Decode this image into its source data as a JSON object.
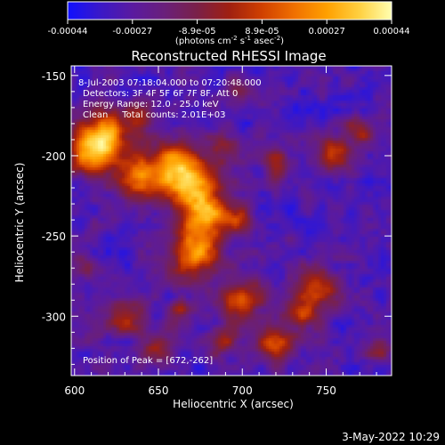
{
  "colorbar": {
    "ticks": [
      "-0.00044",
      "-0.00027",
      "-8.9e-05",
      "8.9e-05",
      "0.00027",
      "0.00044"
    ],
    "units_main": "(photons cm",
    "units_exp1": "-2",
    "units_mid": " s",
    "units_exp2": "-1",
    "units_tail": " asec",
    "units_exp3": "-2",
    "units_close": ")",
    "stops": [
      "#1010ff",
      "#3a18c8",
      "#5a1aa0",
      "#6a1f7a",
      "#7a2048",
      "#a02010",
      "#d04000",
      "#f07000",
      "#ffa000",
      "#ffd040",
      "#ffffb0"
    ]
  },
  "plot": {
    "title": "Reconstructed RHESSI Image",
    "xlabel": "Heliocentric X (arcsec)",
    "ylabel": "Heliocentric Y (arcsec)",
    "x_ticks": [
      "600",
      "650",
      "700",
      "750"
    ],
    "y_ticks": [
      "-150",
      "-200",
      "-250",
      "-300"
    ],
    "xlim": [
      598,
      789
    ],
    "ylim": [
      -337,
      -144
    ]
  },
  "annotations": {
    "time": "8-Jul-2003 07:18:04.000 to 07:20:48.000",
    "detectors": "Detectors: 3F 4F 5F 6F 7F 8F, Att 0",
    "energy": "Energy Range: 12.0 - 25.0 keV",
    "clean": "Clean     Total counts: 2.01E+03",
    "peak": "Position of Peak = [672,-262]"
  },
  "footer": {
    "date": "3-May-2022 10:29"
  },
  "image": {
    "peak": [
      672,
      -262
    ],
    "blobs": [
      {
        "x": 618,
        "y": -188,
        "s": 12,
        "a": 1.0
      },
      {
        "x": 608,
        "y": -200,
        "s": 9,
        "a": 0.7
      },
      {
        "x": 640,
        "y": -215,
        "s": 10,
        "a": 0.8
      },
      {
        "x": 660,
        "y": -205,
        "s": 10,
        "a": 0.9
      },
      {
        "x": 672,
        "y": -222,
        "s": 11,
        "a": 1.0
      },
      {
        "x": 678,
        "y": -240,
        "s": 9,
        "a": 0.8
      },
      {
        "x": 672,
        "y": -262,
        "s": 10,
        "a": 1.0
      },
      {
        "x": 696,
        "y": -240,
        "s": 7,
        "a": 0.6
      },
      {
        "x": 690,
        "y": -195,
        "s": 7,
        "a": 0.5
      },
      {
        "x": 628,
        "y": -300,
        "s": 9,
        "a": 0.55
      },
      {
        "x": 650,
        "y": -320,
        "s": 8,
        "a": 0.5
      },
      {
        "x": 700,
        "y": -290,
        "s": 9,
        "a": 0.75
      },
      {
        "x": 720,
        "y": -318,
        "s": 8,
        "a": 0.7
      },
      {
        "x": 745,
        "y": -282,
        "s": 9,
        "a": 0.75
      },
      {
        "x": 735,
        "y": -300,
        "s": 7,
        "a": 0.6
      },
      {
        "x": 720,
        "y": -205,
        "s": 6,
        "a": 0.6
      },
      {
        "x": 755,
        "y": -198,
        "s": 7,
        "a": 0.7
      },
      {
        "x": 770,
        "y": -185,
        "s": 6,
        "a": 0.5
      },
      {
        "x": 640,
        "y": -175,
        "s": 7,
        "a": 0.5
      },
      {
        "x": 700,
        "y": -160,
        "s": 6,
        "a": 0.35
      },
      {
        "x": 780,
        "y": -320,
        "s": 6,
        "a": 0.4
      },
      {
        "x": 605,
        "y": -270,
        "s": 6,
        "a": 0.35
      },
      {
        "x": 662,
        "y": -295,
        "s": 5,
        "a": 0.45
      },
      {
        "x": 688,
        "y": -315,
        "s": 6,
        "a": 0.55
      }
    ]
  }
}
